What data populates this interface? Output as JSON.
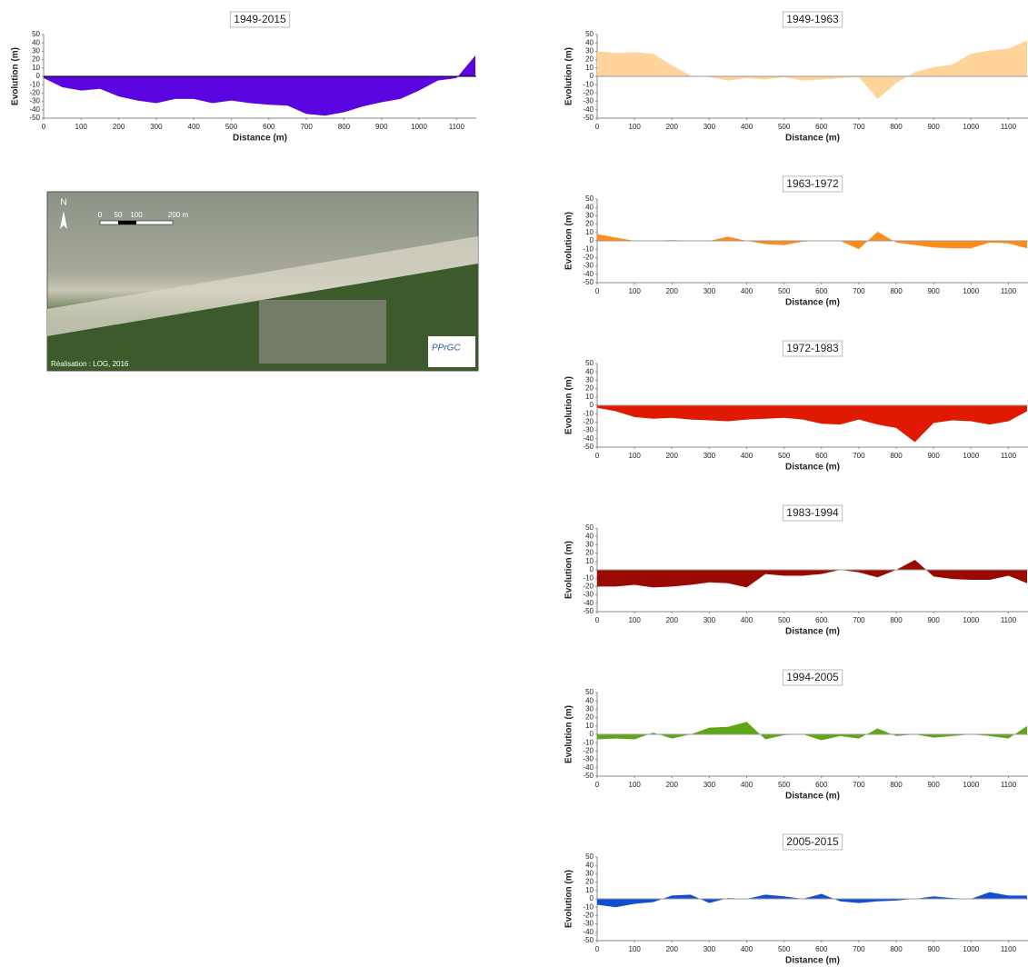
{
  "chart_data": [
    {
      "type": "area",
      "title": "1949-2015",
      "xlabel": "Distance (m)",
      "ylabel": "Evolution (m)",
      "color": "#5a05e0",
      "zero_line": "#000000",
      "x": [
        0,
        50,
        100,
        150,
        200,
        250,
        300,
        350,
        400,
        450,
        500,
        550,
        600,
        650,
        700,
        750,
        800,
        850,
        900,
        950,
        1000,
        1050,
        1100,
        1150
      ],
      "values": [
        -2,
        -13,
        -17,
        -15,
        -24,
        -29,
        -32,
        -27,
        -27,
        -32,
        -29,
        -32,
        -34,
        -35,
        -45,
        -47,
        -43,
        -36,
        -31,
        -27,
        -17,
        -5,
        -2,
        25
      ],
      "xlim": [
        0,
        1150
      ],
      "xticks": [
        0,
        100,
        200,
        300,
        400,
        500,
        600,
        700,
        800,
        900,
        1000,
        1100
      ],
      "ylim": [
        -50,
        50
      ],
      "yticks": [
        -50,
        -40,
        -30,
        -20,
        -10,
        0,
        10,
        20,
        30,
        40,
        50
      ]
    },
    {
      "type": "area",
      "title": "1949-1963",
      "xlabel": "Distance (m)",
      "ylabel": "Evolution (m)",
      "color": "#ffd49a",
      "zero_line": "#999999",
      "x": [
        0,
        50,
        100,
        150,
        200,
        250,
        300,
        350,
        400,
        450,
        500,
        550,
        600,
        650,
        700,
        750,
        800,
        850,
        900,
        950,
        1000,
        1050,
        1100,
        1150
      ],
      "values": [
        30,
        28,
        29,
        27,
        13,
        1,
        -1,
        -5,
        -2,
        -4,
        -1,
        -5,
        -4,
        -2,
        -1,
        -27,
        -8,
        5,
        11,
        14,
        27,
        31,
        33,
        43
      ],
      "xlim": [
        0,
        1150
      ],
      "xticks": [
        0,
        100,
        200,
        300,
        400,
        500,
        600,
        700,
        800,
        900,
        1000,
        1100
      ],
      "ylim": [
        -50,
        50
      ],
      "yticks": [
        -50,
        -40,
        -30,
        -20,
        -10,
        0,
        10,
        20,
        30,
        40,
        50
      ]
    },
    {
      "type": "area",
      "title": "1963-1972",
      "xlabel": "Distance (m)",
      "ylabel": "Evolution (m)",
      "color": "#ff8c1a",
      "zero_line": "#999999",
      "x": [
        0,
        50,
        100,
        150,
        200,
        250,
        300,
        350,
        400,
        450,
        500,
        550,
        600,
        650,
        700,
        750,
        800,
        850,
        900,
        950,
        1000,
        1050,
        1100,
        1150
      ],
      "values": [
        8,
        4,
        0,
        0,
        1,
        0,
        0,
        5,
        0,
        -4,
        -5,
        -1,
        0,
        0,
        -10,
        11,
        -2,
        -5,
        -8,
        -9,
        -9,
        -2,
        -3,
        -9
      ],
      "xlim": [
        0,
        1150
      ],
      "xticks": [
        0,
        100,
        200,
        300,
        400,
        500,
        600,
        700,
        800,
        900,
        1000,
        1100
      ],
      "ylim": [
        -50,
        50
      ],
      "yticks": [
        -50,
        -40,
        -30,
        -20,
        -10,
        0,
        10,
        20,
        30,
        40,
        50
      ]
    },
    {
      "type": "area",
      "title": "1972-1983",
      "xlabel": "Distance (m)",
      "ylabel": "Evolution (m)",
      "color": "#e01a00",
      "zero_line": "#999999",
      "x": [
        0,
        50,
        100,
        150,
        200,
        250,
        300,
        350,
        400,
        450,
        500,
        550,
        600,
        650,
        700,
        750,
        800,
        850,
        900,
        950,
        1000,
        1050,
        1100,
        1150
      ],
      "values": [
        -3,
        -7,
        -14,
        -16,
        -15,
        -17,
        -18,
        -19,
        -17,
        -16,
        -15,
        -17,
        -22,
        -23,
        -17,
        -23,
        -27,
        -44,
        -21,
        -18,
        -19,
        -23,
        -19,
        -7
      ],
      "xlim": [
        0,
        1150
      ],
      "xticks": [
        0,
        100,
        200,
        300,
        400,
        500,
        600,
        700,
        800,
        900,
        1000,
        1100
      ],
      "ylim": [
        -50,
        50
      ],
      "yticks": [
        -50,
        -40,
        -30,
        -20,
        -10,
        0,
        10,
        20,
        30,
        40,
        50
      ]
    },
    {
      "type": "area",
      "title": "1983-1994",
      "xlabel": "Distance (m)",
      "ylabel": "Evolution (m)",
      "color": "#9b0a00",
      "zero_line": "#999999",
      "x": [
        0,
        50,
        100,
        150,
        200,
        250,
        300,
        350,
        400,
        450,
        500,
        550,
        600,
        650,
        700,
        750,
        800,
        850,
        900,
        950,
        1000,
        1050,
        1100,
        1150
      ],
      "values": [
        -20,
        -20,
        -18,
        -21,
        -20,
        -18,
        -15,
        -16,
        -21,
        -5,
        -7,
        -7,
        -5,
        0,
        -3,
        -9,
        0,
        12,
        -8,
        -11,
        -12,
        -12,
        -7,
        -16
      ],
      "xlim": [
        0,
        1150
      ],
      "xticks": [
        0,
        100,
        200,
        300,
        400,
        500,
        600,
        700,
        800,
        900,
        1000,
        1100
      ],
      "ylim": [
        -50,
        50
      ],
      "yticks": [
        -50,
        -40,
        -30,
        -20,
        -10,
        0,
        10,
        20,
        30,
        40,
        50
      ]
    },
    {
      "type": "area",
      "title": "1994-2005",
      "xlabel": "Distance (m)",
      "ylabel": "Evolution (m)",
      "color": "#5fa614",
      "zero_line": "#999999",
      "x": [
        0,
        50,
        100,
        150,
        200,
        250,
        300,
        350,
        400,
        450,
        500,
        550,
        600,
        650,
        700,
        750,
        800,
        850,
        900,
        950,
        1000,
        1050,
        1100,
        1150
      ],
      "values": [
        -6,
        -5,
        -6,
        2,
        -5,
        0,
        8,
        9,
        15,
        -6,
        -1,
        0,
        -7,
        -2,
        -5,
        7,
        -2,
        0,
        -4,
        -2,
        0,
        -2,
        -5,
        10
      ],
      "xlim": [
        0,
        1150
      ],
      "xticks": [
        0,
        100,
        200,
        300,
        400,
        500,
        600,
        700,
        800,
        900,
        1000,
        1100
      ],
      "ylim": [
        -50,
        50
      ],
      "yticks": [
        -50,
        -40,
        -30,
        -20,
        -10,
        0,
        10,
        20,
        30,
        40,
        50
      ]
    },
    {
      "type": "area",
      "title": "2005-2015",
      "xlabel": "Distance (m)",
      "ylabel": "Evolution (m)",
      "color": "#1050d0",
      "zero_line": "#999999",
      "x": [
        0,
        50,
        100,
        150,
        200,
        250,
        300,
        350,
        400,
        450,
        500,
        550,
        600,
        650,
        700,
        750,
        800,
        850,
        900,
        950,
        1000,
        1050,
        1100,
        1150
      ],
      "values": [
        -7,
        -10,
        -6,
        -4,
        4,
        5,
        -5,
        1,
        0,
        5,
        3,
        0,
        6,
        -3,
        -5,
        -3,
        -2,
        0,
        3,
        1,
        0,
        8,
        4,
        4
      ],
      "xlim": [
        0,
        1150
      ],
      "xticks": [
        0,
        100,
        200,
        300,
        400,
        500,
        600,
        700,
        800,
        900,
        1000,
        1100
      ],
      "ylim": [
        -50,
        50
      ],
      "yticks": [
        -50,
        -40,
        -30,
        -20,
        -10,
        0,
        10,
        20,
        30,
        40,
        50
      ]
    }
  ],
  "map_inset": {
    "north": "N",
    "scale_labels": [
      "0",
      "50",
      "100",
      "200 m"
    ],
    "credit": "Réalisation : LOG, 2016",
    "logo": "PPrGC"
  }
}
